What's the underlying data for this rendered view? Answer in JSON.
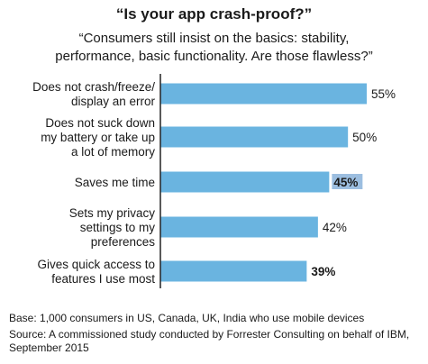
{
  "title": "“Is your app crash-proof?”",
  "subtitle_lines": [
    "“Consumers still insist on the basics: stability,",
    "performance, basic functionality. Are those flawless?”"
  ],
  "footnotes": {
    "base": "Base: 1,000 consumers in US, Canada, UK, India who use mobile devices",
    "source": "Source: A commissioned study conducted by Forrester Consulting on behalf of IBM, September 2015"
  },
  "colors": {
    "bar": "#6ab4e0",
    "axis": "#222222",
    "highlight": "#4a89c6"
  },
  "chart_data": {
    "type": "bar",
    "orientation": "horizontal",
    "categories": [
      [
        "Does not crash/freeze/",
        "display an error"
      ],
      [
        "Does not suck down",
        "my battery or take up",
        "a lot of memory"
      ],
      [
        "Saves me time"
      ],
      [
        "Sets my privacy",
        "settings to my",
        "preferences"
      ],
      [
        "Gives quick access to",
        "features I use most"
      ]
    ],
    "values": [
      55,
      50,
      45,
      42,
      39
    ],
    "value_labels": [
      "55%",
      "50%",
      "45%",
      "42%",
      "39%"
    ],
    "emphasized": [
      false,
      false,
      true,
      false,
      true
    ],
    "highlighted": [
      false,
      false,
      true,
      false,
      false
    ],
    "xlim": [
      0,
      55
    ],
    "grid": false,
    "legend": "none"
  }
}
